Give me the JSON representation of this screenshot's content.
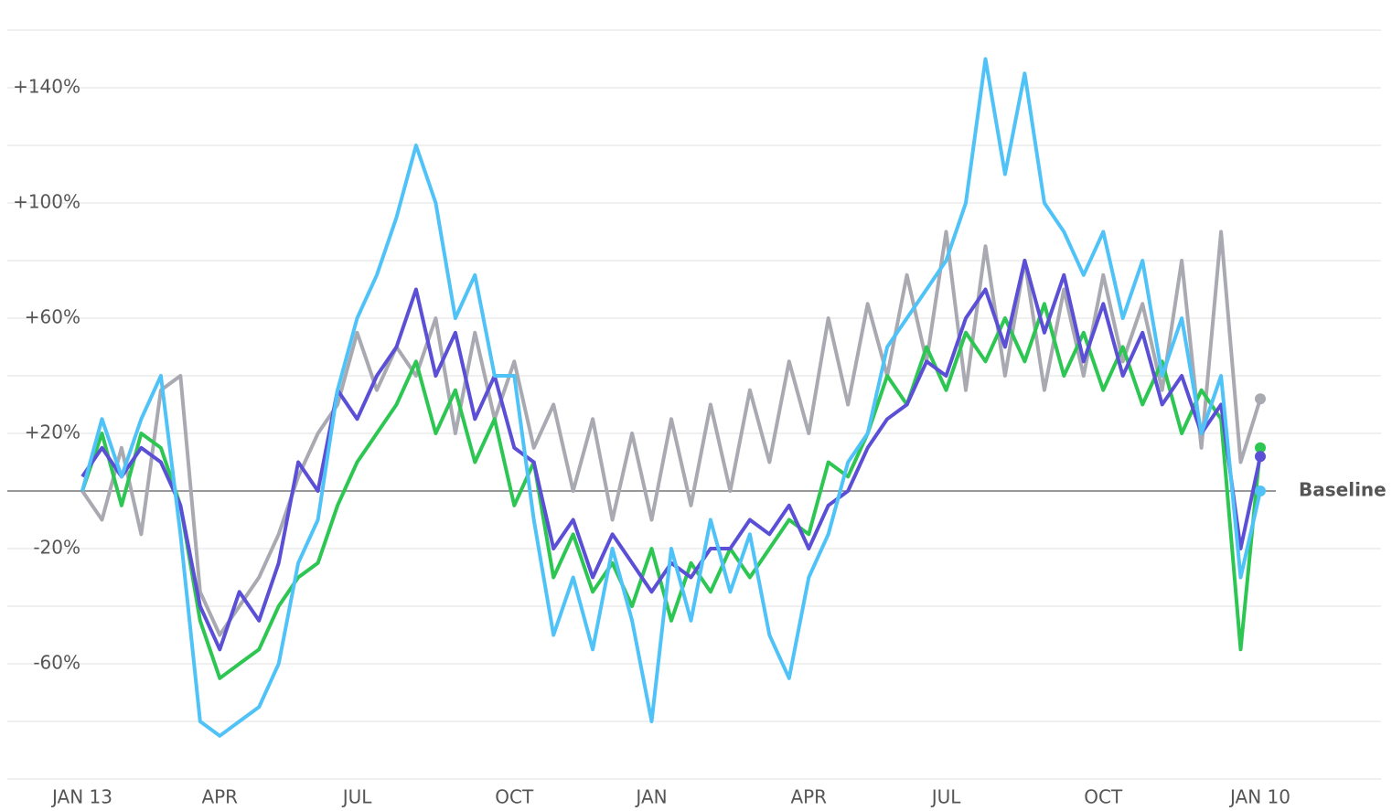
{
  "chart_data": {
    "type": "line",
    "categories": [
      "JAN 13",
      null,
      null,
      null,
      null,
      null,
      null,
      "APR",
      null,
      null,
      null,
      null,
      null,
      null,
      "JUL",
      null,
      null,
      null,
      null,
      null,
      null,
      null,
      "OCT",
      null,
      null,
      null,
      null,
      null,
      null,
      "JAN",
      null,
      null,
      null,
      null,
      null,
      null,
      null,
      "APR",
      null,
      null,
      null,
      null,
      null,
      null,
      "JUL",
      null,
      null,
      null,
      null,
      null,
      null,
      null,
      "OCT",
      null,
      null,
      null,
      null,
      null,
      null,
      null,
      "JAN 10"
    ],
    "ylim": [
      -100,
      160
    ],
    "yticks": [
      {
        "value": 140,
        "label": "+140%"
      },
      {
        "value": 100,
        "label": "+100%"
      },
      {
        "value": 60,
        "label": "+60%"
      },
      {
        "value": 20,
        "label": "+20%"
      },
      {
        "value": -20,
        "label": "-20%"
      },
      {
        "value": -60,
        "label": "-60%"
      }
    ],
    "minor_gridlines": [
      160,
      120,
      80,
      40,
      -40,
      -80,
      -100
    ],
    "baseline": {
      "value": 0,
      "label": "Baseline"
    },
    "series": [
      {
        "color": "#a9a9b2",
        "values": [
          0,
          -10,
          15,
          -15,
          35,
          40,
          -35,
          -50,
          -40,
          -30,
          -15,
          5,
          20,
          30,
          55,
          35,
          50,
          40,
          60,
          20,
          55,
          25,
          45,
          15,
          30,
          0,
          25,
          -10,
          20,
          -10,
          25,
          -5,
          30,
          0,
          35,
          10,
          45,
          20,
          60,
          30,
          65,
          40,
          75,
          45,
          90,
          35,
          85,
          40,
          80,
          35,
          70,
          40,
          75,
          45,
          65,
          35,
          80,
          15,
          90,
          10,
          32
        ]
      },
      {
        "color": "#2dc653",
        "values": [
          0,
          20,
          -5,
          20,
          15,
          -5,
          -45,
          -65,
          -60,
          -55,
          -40,
          -30,
          -25,
          -5,
          10,
          20,
          30,
          45,
          20,
          35,
          10,
          25,
          -5,
          10,
          -30,
          -15,
          -35,
          -25,
          -40,
          -20,
          -45,
          -25,
          -35,
          -20,
          -30,
          -20,
          -10,
          -15,
          10,
          5,
          20,
          40,
          30,
          50,
          35,
          55,
          45,
          60,
          45,
          65,
          40,
          55,
          35,
          50,
          30,
          45,
          20,
          35,
          25,
          -55,
          15
        ]
      },
      {
        "color": "#5b4fd6",
        "values": [
          5,
          15,
          5,
          15,
          10,
          -5,
          -40,
          -55,
          -35,
          -45,
          -25,
          10,
          0,
          35,
          25,
          40,
          50,
          70,
          40,
          55,
          25,
          40,
          15,
          10,
          -20,
          -10,
          -30,
          -15,
          -25,
          -35,
          -25,
          -30,
          -20,
          -20,
          -10,
          -15,
          -5,
          -20,
          -5,
          0,
          15,
          25,
          30,
          45,
          40,
          60,
          70,
          50,
          80,
          55,
          75,
          45,
          65,
          40,
          55,
          30,
          40,
          20,
          30,
          -20,
          12
        ]
      },
      {
        "color": "#4fc3f7",
        "values": [
          0,
          25,
          5,
          25,
          40,
          -15,
          -80,
          -85,
          -80,
          -75,
          -60,
          -25,
          -10,
          35,
          60,
          75,
          95,
          120,
          100,
          60,
          75,
          40,
          40,
          -10,
          -50,
          -30,
          -55,
          -20,
          -45,
          -80,
          -20,
          -45,
          -10,
          -35,
          -15,
          -50,
          -65,
          -30,
          -15,
          10,
          20,
          50,
          60,
          70,
          80,
          100,
          150,
          110,
          145,
          100,
          90,
          75,
          90,
          60,
          80,
          40,
          60,
          20,
          40,
          -30,
          0
        ]
      }
    ]
  }
}
